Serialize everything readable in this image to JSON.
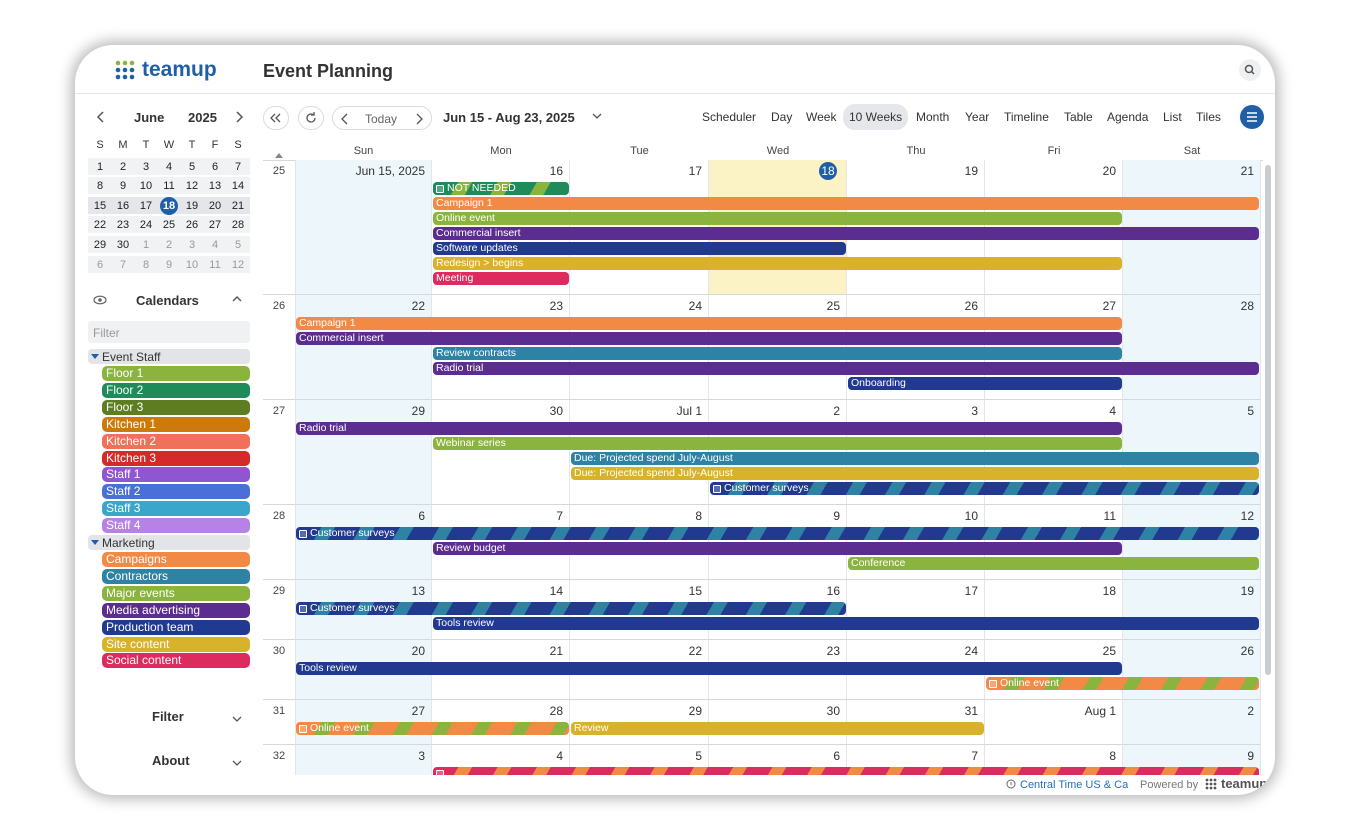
{
  "header": {
    "logo": "teamup",
    "title": "Event Planning"
  },
  "mini_calendar": {
    "month": "June",
    "year": "2025",
    "weekdays": [
      "S",
      "M",
      "T",
      "W",
      "T",
      "F",
      "S"
    ],
    "weeks": [
      [
        "1",
        "2",
        "3",
        "4",
        "5",
        "6",
        "7"
      ],
      [
        "8",
        "9",
        "10",
        "11",
        "12",
        "13",
        "14"
      ],
      [
        "15",
        "16",
        "17",
        "18",
        "19",
        "20",
        "21"
      ],
      [
        "22",
        "23",
        "24",
        "25",
        "26",
        "27",
        "28"
      ],
      [
        "29",
        "30",
        "1",
        "2",
        "3",
        "4",
        "5"
      ],
      [
        "6",
        "7",
        "8",
        "9",
        "10",
        "11",
        "12"
      ]
    ]
  },
  "calendars": {
    "title": "Calendars",
    "filter_placeholder": "Filter",
    "groups": [
      {
        "name": "Event Staff",
        "items": [
          {
            "name": "Floor 1",
            "color": "#8bb43f"
          },
          {
            "name": "Floor 2",
            "color": "#1f8a5a"
          },
          {
            "name": "Floor 3",
            "color": "#5e7d22"
          },
          {
            "name": "Kitchen 1",
            "color": "#cc7a0e"
          },
          {
            "name": "Kitchen 2",
            "color": "#f0705a"
          },
          {
            "name": "Kitchen 3",
            "color": "#d52a2a"
          },
          {
            "name": "Staff 1",
            "color": "#8e57d1"
          },
          {
            "name": "Staff 2",
            "color": "#4a6fd9"
          },
          {
            "name": "Staff 3",
            "color": "#3aa6cc"
          },
          {
            "name": "Staff 4",
            "color": "#b782e6"
          }
        ]
      },
      {
        "name": "Marketing",
        "items": [
          {
            "name": "Campaigns",
            "color": "#f28a45"
          },
          {
            "name": "Contractors",
            "color": "#2e82a3"
          },
          {
            "name": "Major events",
            "color": "#8bb43f"
          },
          {
            "name": "Media advertising",
            "color": "#5c2d91"
          },
          {
            "name": "Production team",
            "color": "#213a8f"
          },
          {
            "name": "Site content",
            "color": "#d8b22a"
          },
          {
            "name": "Social content",
            "color": "#dd2a5f"
          }
        ]
      }
    ]
  },
  "sidebar_sections": [
    "Filter",
    "About"
  ],
  "toolbar": {
    "today": "Today",
    "range": "Jun 15 - Aug 23, 2025",
    "views": [
      {
        "label": "Scheduler"
      },
      {
        "label": "Day"
      },
      {
        "label": "Week"
      },
      {
        "label": "10 Weeks",
        "active": true
      },
      {
        "label": "Month"
      },
      {
        "label": "Year"
      },
      {
        "label": "Timeline"
      },
      {
        "label": "Table"
      },
      {
        "label": "Agenda"
      },
      {
        "label": "List"
      },
      {
        "label": "Tiles"
      }
    ]
  },
  "grid": {
    "weekdays": [
      "Sun",
      "Mon",
      "Tue",
      "Wed",
      "Thu",
      "Fri",
      "Sat"
    ],
    "weeks": [
      {
        "number": "25",
        "days": [
          "Jun 15, 2025",
          "16",
          "17",
          "18",
          "19",
          "20",
          "21"
        ],
        "events": [
          {
            "label": "NOT NEEDED",
            "colors": [
              "#1f8a5a",
              "#8bb43f"
            ],
            "icon": true
          },
          {
            "label": "Campaign 1",
            "color": "#f28a45"
          },
          {
            "label": "Online event",
            "color": "#8bb43f"
          },
          {
            "label": "Commercial insert",
            "color": "#5c2d91"
          },
          {
            "label": "Software updates",
            "color": "#213a8f"
          },
          {
            "label": "Redesign > begins",
            "color": "#d8b22a"
          },
          {
            "label": "Meeting",
            "color": "#dd2a5f"
          }
        ]
      },
      {
        "number": "26",
        "days": [
          "22",
          "23",
          "24",
          "25",
          "26",
          "27",
          "28"
        ],
        "events": [
          {
            "label": "Campaign 1",
            "color": "#f28a45"
          },
          {
            "label": "Commercial insert",
            "color": "#5c2d91"
          },
          {
            "label": "Review contracts",
            "color": "#2e82a3"
          },
          {
            "label": "Radio trial",
            "color": "#5c2d91"
          },
          {
            "label": "Onboarding",
            "color": "#213a8f"
          }
        ]
      },
      {
        "number": "27",
        "days": [
          "29",
          "30",
          "Jul 1",
          "2",
          "3",
          "4",
          "5"
        ],
        "events": [
          {
            "label": "Radio trial",
            "color": "#5c2d91"
          },
          {
            "label": "Webinar series",
            "color": "#8bb43f"
          },
          {
            "label": "Due: Projected spend July-August",
            "color": "#2e82a3"
          },
          {
            "label": "Due: Projected spend July-August",
            "color": "#d8b22a"
          },
          {
            "label": "Customer surveys",
            "colors": [
              "#213a8f",
              "#2e82a3"
            ],
            "icon": true
          }
        ]
      },
      {
        "number": "28",
        "days": [
          "6",
          "7",
          "8",
          "9",
          "10",
          "11",
          "12"
        ],
        "events": [
          {
            "label": "Customer surveys",
            "colors": [
              "#213a8f",
              "#2e82a3"
            ],
            "icon": true
          },
          {
            "label": "Review budget",
            "color": "#5c2d91"
          },
          {
            "label": "Conference",
            "color": "#8bb43f"
          }
        ]
      },
      {
        "number": "29",
        "days": [
          "13",
          "14",
          "15",
          "16",
          "17",
          "18",
          "19"
        ],
        "events": [
          {
            "label": "Customer surveys",
            "colors": [
              "#213a8f",
              "#2e82a3"
            ],
            "icon": true
          },
          {
            "label": "Tools review",
            "color": "#213a8f"
          }
        ]
      },
      {
        "number": "30",
        "days": [
          "20",
          "21",
          "22",
          "23",
          "24",
          "25",
          "26"
        ],
        "events": [
          {
            "label": "Tools review",
            "color": "#213a8f"
          },
          {
            "label": "Online event",
            "colors": [
              "#f28a45",
              "#8bb43f"
            ],
            "icon": true
          }
        ]
      },
      {
        "number": "31",
        "days": [
          "27",
          "28",
          "29",
          "30",
          "31",
          "Aug 1",
          "2"
        ],
        "events": [
          {
            "label": "Online event",
            "colors": [
              "#f28a45",
              "#8bb43f"
            ],
            "icon": true
          },
          {
            "label": "Review",
            "color": "#d8b22a"
          }
        ]
      },
      {
        "number": "32",
        "days": [
          "3",
          "4",
          "5",
          "6",
          "7",
          "8",
          "9"
        ],
        "events": [
          {
            "colors": [
              "#dd2a5f",
              "#f28a45"
            ],
            "icon": true
          }
        ]
      }
    ]
  },
  "footer": {
    "timezone": "Central Time US & Ca",
    "powered_by": "Powered by",
    "brand": "teamup"
  }
}
